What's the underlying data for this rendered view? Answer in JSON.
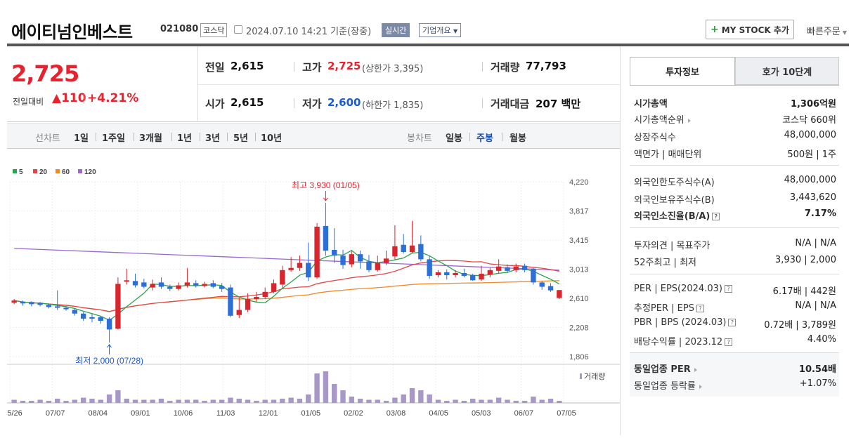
{
  "header": {
    "name": "에이티넘인베스트",
    "code": "021080",
    "market": "코스닥",
    "datetime": "2024.07.10 14:21 기준(장중)",
    "realtime": "실시간",
    "overview": "기업개요",
    "mystock": "MY STOCK 추가",
    "quick_order": "빠른주문"
  },
  "price": {
    "current": "2,725",
    "change_label": "전일대비",
    "change_abs": "110",
    "change_pct": "+4.21%"
  },
  "stats": {
    "prev_label": "전일",
    "prev": "2,615",
    "open_label": "시가",
    "open": "2,615",
    "high_label": "고가",
    "high": "2,725",
    "upper_limit": "(상한가 3,395)",
    "low_label": "저가",
    "low": "2,600",
    "lower_limit": "(하한가 1,835)",
    "volume_label": "거래량",
    "volume": "77,793",
    "amount_label": "거래대금",
    "amount": "207 백만"
  },
  "period": {
    "line_label": "선차트",
    "p1": "1일",
    "p2": "1주일",
    "p3": "3개월",
    "p4": "1년",
    "p5": "3년",
    "p6": "5년",
    "p7": "10년",
    "candle_label": "봉차트",
    "daily": "일봉",
    "weekly": "주봉",
    "monthly": "월봉"
  },
  "chart_data": {
    "type": "candlestick",
    "legend": [
      "5",
      "20",
      "60",
      "120"
    ],
    "ma_colors": [
      "#2aa44a",
      "#e04848",
      "#f08a28",
      "#9a68d0"
    ],
    "up_color": "#d8262f",
    "down_color": "#2c6fd6",
    "y_ticks": [
      "4,220",
      "3,817",
      "3,415",
      "3,013",
      "2,610",
      "2,208",
      "1,806"
    ],
    "ylim": [
      1806,
      4220
    ],
    "x_labels": [
      "05/26",
      "07/07",
      "08/04",
      "09/01",
      "10/06",
      "11/03",
      "12/01",
      "01/05",
      "02/02",
      "03/08",
      "04/05",
      "05/03",
      "06/07",
      "07/05"
    ],
    "high_annotation": "최고 3,930 (01/05)",
    "low_annotation": "최저 2,000 (07/28)",
    "volume_label": "거래량",
    "candles": [
      [
        2550,
        2580,
        2530,
        2600
      ],
      [
        2560,
        2540,
        2510,
        2580
      ],
      [
        2560,
        2530,
        2500,
        2570
      ],
      [
        2550,
        2520,
        2500,
        2560
      ],
      [
        2520,
        2490,
        2470,
        2540
      ],
      [
        2500,
        2480,
        2450,
        2720
      ],
      [
        2480,
        2460,
        2440,
        2500
      ],
      [
        2450,
        2400,
        2370,
        2470
      ],
      [
        2400,
        2330,
        2300,
        2420
      ],
      [
        2350,
        2330,
        2280,
        2400
      ],
      [
        2350,
        2300,
        2260,
        2370
      ],
      [
        2330,
        2180,
        2000,
        2350
      ],
      [
        2190,
        2810,
        2180,
        2900
      ],
      [
        2840,
        2860,
        2800,
        3020
      ],
      [
        2850,
        2790,
        2760,
        2950
      ],
      [
        2830,
        2770,
        2750,
        2880
      ],
      [
        2760,
        2810,
        2720,
        2870
      ],
      [
        2830,
        2770,
        2740,
        2900
      ],
      [
        2770,
        2740,
        2710,
        2800
      ],
      [
        2740,
        2790,
        2720,
        2830
      ],
      [
        2790,
        2830,
        2760,
        3030
      ],
      [
        2820,
        2790,
        2760,
        2860
      ],
      [
        2780,
        2810,
        2760,
        2840
      ],
      [
        2820,
        2770,
        2750,
        2860
      ],
      [
        2780,
        2740,
        2700,
        2820
      ],
      [
        2760,
        2370,
        2350,
        2800
      ],
      [
        2380,
        2450,
        2340,
        2620
      ],
      [
        2450,
        2600,
        2420,
        2680
      ],
      [
        2600,
        2630,
        2560,
        2700
      ],
      [
        2630,
        2700,
        2600,
        2760
      ],
      [
        2700,
        2820,
        2680,
        2870
      ],
      [
        2800,
        3000,
        2760,
        3060
      ],
      [
        3000,
        3030,
        2980,
        3180
      ],
      [
        3030,
        3100,
        2990,
        3200
      ],
      [
        3100,
        2900,
        2850,
        3380
      ],
      [
        2900,
        3600,
        2880,
        3650
      ],
      [
        3610,
        3270,
        3200,
        3930
      ],
      [
        3280,
        3200,
        3100,
        3580
      ],
      [
        3200,
        3070,
        3020,
        3280
      ],
      [
        3080,
        3220,
        3040,
        3260
      ],
      [
        3220,
        3120,
        3020,
        3270
      ],
      [
        3120,
        3000,
        2970,
        3210
      ],
      [
        3000,
        3100,
        2980,
        3200
      ],
      [
        3100,
        3160,
        3070,
        3270
      ],
      [
        3190,
        3330,
        3150,
        3620
      ],
      [
        3350,
        3250,
        3230,
        3500
      ],
      [
        3250,
        3340,
        3240,
        3680
      ],
      [
        3360,
        3150,
        3120,
        3480
      ],
      [
        3150,
        2920,
        2880,
        3200
      ],
      [
        2930,
        2970,
        2900,
        3000
      ],
      [
        2970,
        2930,
        2870,
        3010
      ],
      [
        2930,
        2960,
        2900,
        3000
      ],
      [
        2960,
        2920,
        2900,
        3020
      ],
      [
        2930,
        2860,
        2850,
        2950
      ],
      [
        2870,
        2950,
        2850,
        3060
      ],
      [
        2940,
        3000,
        2900,
        3030
      ],
      [
        2990,
        3050,
        2960,
        3150
      ],
      [
        3040,
        2990,
        2960,
        3080
      ],
      [
        3000,
        3050,
        2970,
        3090
      ],
      [
        3060,
        3000,
        2970,
        3090
      ],
      [
        3020,
        2830,
        2800,
        3030
      ],
      [
        2830,
        2770,
        2730,
        2850
      ],
      [
        2780,
        2720,
        2700,
        2820
      ],
      [
        2615,
        2725,
        2600,
        2725
      ]
    ],
    "volumes": [
      3,
      2,
      2,
      3,
      2,
      4,
      2,
      3,
      5,
      4,
      3,
      8,
      12,
      4,
      3,
      3,
      3,
      4,
      2,
      3,
      3,
      3,
      2,
      3,
      3,
      5,
      4,
      3,
      2,
      3,
      3,
      4,
      5,
      4,
      8,
      28,
      30,
      18,
      12,
      6,
      4,
      3,
      3,
      2,
      5,
      8,
      14,
      12,
      8,
      3,
      2,
      3,
      2,
      4,
      3,
      3,
      5,
      3,
      2,
      2,
      6,
      3,
      4,
      2
    ]
  },
  "side": {
    "tab1": "투자정보",
    "tab2": "호가 10단계",
    "mcap_label": "시가총액",
    "mcap": "1,306억원",
    "mcap_rank_label": "시가총액순위",
    "mcap_rank": "코스닥 660위",
    "shares_label": "상장주식수",
    "shares": "48,000,000",
    "par_label": "액면가 | 매매단위",
    "par": "500원 | 1주",
    "foreign_limit_label": "외국인한도주식수(A)",
    "foreign_limit": "48,000,000",
    "foreign_hold_label": "외국인보유주식수(B)",
    "foreign_hold": "3,443,620",
    "foreign_ratio_label": "외국인소진율(B/A)",
    "foreign_ratio": "7.17%",
    "opinion_label": "투자의견 | 목표주가",
    "opinion": "N/A | N/A",
    "wk52_label": "52주최고 | 최저",
    "wk52": "3,930 | 2,000",
    "per_label": "PER | EPS(2024.03)",
    "per": "6.17배 | 442원",
    "est_per_label": "추정PER | EPS",
    "est_per": "N/A | N/A",
    "pbr_label": "PBR | BPS (2024.03)",
    "pbr": "0.72배 | 3,789원",
    "div_label": "배당수익률 | 2023.12",
    "div": "4.40%",
    "sector_per_label": "동일업종 PER",
    "sector_per": "10.54배",
    "sector_chg_label": "동일업종 등락률",
    "sector_chg": "+1.07%"
  }
}
